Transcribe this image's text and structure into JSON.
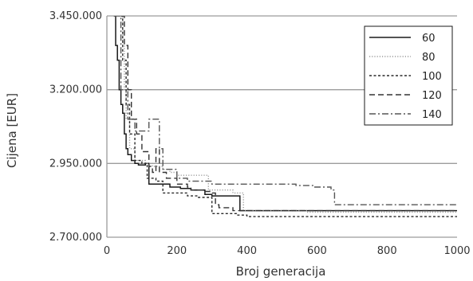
{
  "chart_data": {
    "type": "line",
    "title": "",
    "xlabel": "Broj generacija",
    "ylabel": "Cijena [EUR]",
    "xlim": [
      0,
      1000
    ],
    "ylim": [
      2700000,
      3450000
    ],
    "x_ticks": [
      0,
      200,
      400,
      600,
      800,
      1000
    ],
    "x_tick_labels": [
      "0",
      "200",
      "400",
      "600",
      "800",
      "1000"
    ],
    "y_ticks": [
      2700000,
      2950000,
      3200000,
      3450000
    ],
    "y_tick_labels": [
      "2.700.000",
      "2.950.000",
      "3.200.000",
      "3.450.000"
    ],
    "grid": "horizontal",
    "legend_position": "top-right",
    "series": [
      {
        "name": "60",
        "style": "solid",
        "color": "#1a1a1a",
        "points": [
          [
            20,
            3450000
          ],
          [
            25,
            3350000
          ],
          [
            30,
            3300000
          ],
          [
            35,
            3200000
          ],
          [
            40,
            3150000
          ],
          [
            45,
            3120000
          ],
          [
            50,
            3050000
          ],
          [
            55,
            3000000
          ],
          [
            60,
            2980000
          ],
          [
            70,
            2960000
          ],
          [
            80,
            2950000
          ],
          [
            90,
            2945000
          ],
          [
            110,
            2950000
          ],
          [
            120,
            2880000
          ],
          [
            180,
            2870000
          ],
          [
            210,
            2865000
          ],
          [
            240,
            2860000
          ],
          [
            280,
            2845000
          ],
          [
            300,
            2840000
          ],
          [
            370,
            2840000
          ],
          [
            380,
            2790000
          ],
          [
            1000,
            2790000
          ]
        ]
      },
      {
        "name": "80",
        "style": "dotted",
        "color": "#9a9a9a",
        "points": [
          [
            40,
            3450000
          ],
          [
            45,
            3350000
          ],
          [
            50,
            3200000
          ],
          [
            55,
            3100000
          ],
          [
            65,
            3000000
          ],
          [
            80,
            2960000
          ],
          [
            110,
            2950000
          ],
          [
            130,
            2940000
          ],
          [
            160,
            2930000
          ],
          [
            180,
            2920000
          ],
          [
            200,
            2910000
          ],
          [
            290,
            2905000
          ],
          [
            290,
            2860000
          ],
          [
            360,
            2850000
          ],
          [
            390,
            2790000
          ],
          [
            560,
            2790000
          ],
          [
            570,
            2785000
          ],
          [
            1000,
            2785000
          ]
        ]
      },
      {
        "name": "100",
        "style": "dashed",
        "color": "#2a2a2a",
        "points": [
          [
            40,
            3450000
          ],
          [
            45,
            3300000
          ],
          [
            55,
            3150000
          ],
          [
            65,
            3050000
          ],
          [
            80,
            2960000
          ],
          [
            100,
            2950000
          ],
          [
            115,
            2900000
          ],
          [
            140,
            2890000
          ],
          [
            160,
            2850000
          ],
          [
            230,
            2840000
          ],
          [
            260,
            2835000
          ],
          [
            300,
            2830000
          ],
          [
            300,
            2780000
          ],
          [
            370,
            2775000
          ],
          [
            400,
            2770000
          ],
          [
            1000,
            2770000
          ]
        ]
      },
      {
        "name": "120",
        "style": "longdash",
        "color": "#333333",
        "points": [
          [
            40,
            3450000
          ],
          [
            50,
            3350000
          ],
          [
            60,
            3200000
          ],
          [
            70,
            3100000
          ],
          [
            85,
            3050000
          ],
          [
            100,
            2990000
          ],
          [
            120,
            2940000
          ],
          [
            130,
            2920000
          ],
          [
            140,
            3000000
          ],
          [
            150,
            2920000
          ],
          [
            170,
            2900000
          ],
          [
            200,
            2880000
          ],
          [
            230,
            2870000
          ],
          [
            240,
            2860000
          ],
          [
            260,
            2860000
          ],
          [
            280,
            2855000
          ],
          [
            300,
            2850000
          ],
          [
            310,
            2810000
          ],
          [
            320,
            2800000
          ],
          [
            360,
            2790000
          ],
          [
            640,
            2790000
          ],
          [
            1000,
            2790000
          ]
        ]
      },
      {
        "name": "140",
        "style": "dashdot",
        "color": "#555555",
        "points": [
          [
            20,
            3450000
          ],
          [
            40,
            3200000
          ],
          [
            60,
            3100000
          ],
          [
            80,
            3060000
          ],
          [
            100,
            3060000
          ],
          [
            120,
            3100000
          ],
          [
            140,
            3100000
          ],
          [
            150,
            3000000
          ],
          [
            160,
            2930000
          ],
          [
            200,
            2900000
          ],
          [
            230,
            2890000
          ],
          [
            300,
            2880000
          ],
          [
            520,
            2880000
          ],
          [
            540,
            2875000
          ],
          [
            590,
            2870000
          ],
          [
            640,
            2860000
          ],
          [
            650,
            2810000
          ],
          [
            1000,
            2810000
          ]
        ]
      }
    ]
  }
}
